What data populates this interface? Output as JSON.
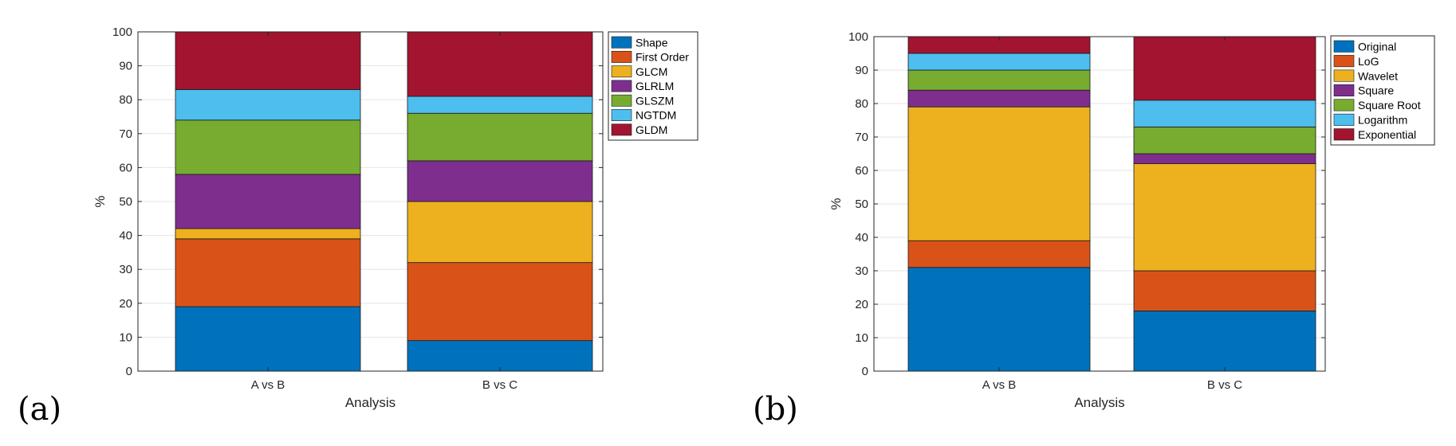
{
  "chart_data": [
    {
      "type": "bar",
      "stacked": true,
      "panel_label": "(a)",
      "title": "",
      "xlabel": "Analysis",
      "ylabel": "%",
      "ylim": [
        0,
        100
      ],
      "yticks": [
        0,
        10,
        20,
        30,
        40,
        50,
        60,
        70,
        80,
        90,
        100
      ],
      "categories": [
        "A vs B",
        "B vs C"
      ],
      "legend_position": "outside-top-right",
      "grid": true,
      "series": [
        {
          "name": "Shape",
          "color": "#0072BD",
          "values": [
            19,
            9
          ]
        },
        {
          "name": "First Order",
          "color": "#D95319",
          "values": [
            20,
            23
          ]
        },
        {
          "name": "GLCM",
          "color": "#EDB120",
          "values": [
            3,
            18
          ]
        },
        {
          "name": "GLRLM",
          "color": "#7E2F8E",
          "values": [
            16,
            12
          ]
        },
        {
          "name": "GLSZM",
          "color": "#77AC30",
          "values": [
            16,
            14
          ]
        },
        {
          "name": "NGTDM",
          "color": "#4DBEEE",
          "values": [
            9,
            5
          ]
        },
        {
          "name": "GLDM",
          "color": "#A2142F",
          "values": [
            17,
            19
          ]
        }
      ]
    },
    {
      "type": "bar",
      "stacked": true,
      "panel_label": "(b)",
      "title": "",
      "xlabel": "Analysis",
      "ylabel": "%",
      "ylim": [
        0,
        100
      ],
      "yticks": [
        0,
        10,
        20,
        30,
        40,
        50,
        60,
        70,
        80,
        90,
        100
      ],
      "categories": [
        "A vs B",
        "B vs C"
      ],
      "legend_position": "outside-top-right",
      "grid": true,
      "series": [
        {
          "name": "Original",
          "color": "#0072BD",
          "values": [
            31,
            18
          ]
        },
        {
          "name": "LoG",
          "color": "#D95319",
          "values": [
            8,
            12
          ]
        },
        {
          "name": "Wavelet",
          "color": "#EDB120",
          "values": [
            40,
            32
          ]
        },
        {
          "name": "Square",
          "color": "#7E2F8E",
          "values": [
            5,
            3
          ]
        },
        {
          "name": "Square Root",
          "color": "#77AC30",
          "values": [
            6,
            8
          ]
        },
        {
          "name": "Logarithm",
          "color": "#4DBEEE",
          "values": [
            5,
            8
          ]
        },
        {
          "name": "Exponential",
          "color": "#A2142F",
          "values": [
            5,
            19
          ]
        }
      ]
    }
  ]
}
